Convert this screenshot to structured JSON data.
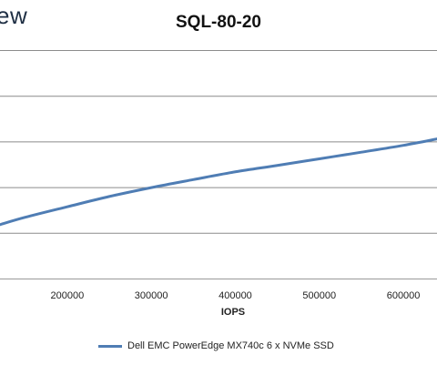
{
  "brand_partial": "ew",
  "chart_data": {
    "type": "line",
    "title": "SQL-80-20",
    "xlabel": "IOPS",
    "ylabel": "",
    "x_ticks": [
      200000,
      300000,
      400000,
      500000,
      600000
    ],
    "xlim": [
      120000,
      640000
    ],
    "y_gridlines": 6,
    "grid": true,
    "legend_position": "bottom",
    "series": [
      {
        "name": "Dell EMC PowerEdge MX740c 6 x NVMe SSD",
        "color": "#4f7db4",
        "x": [
          120000,
          150000,
          200000,
          250000,
          300000,
          350000,
          400000,
          450000,
          500000,
          550000,
          600000,
          640000
        ],
        "y": [
          0.236,
          0.268,
          0.314,
          0.359,
          0.398,
          0.433,
          0.467,
          0.495,
          0.524,
          0.553,
          0.583,
          0.611
        ]
      }
    ],
    "ylim": [
      0,
      1
    ]
  }
}
